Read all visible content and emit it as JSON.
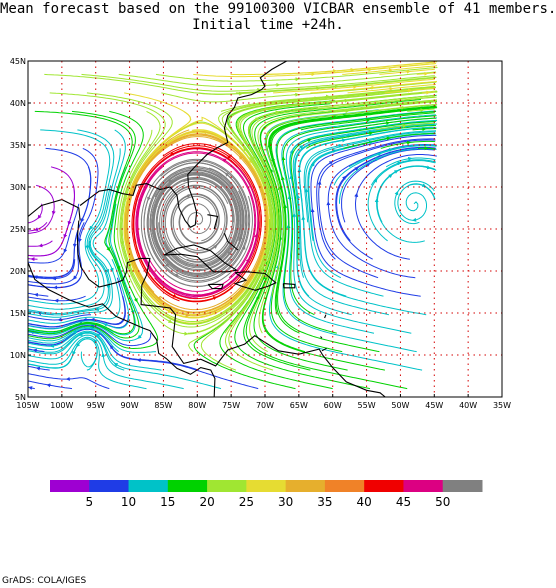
{
  "title_line1": "Mean forecast based on the 99100300 VICBAR ensemble of 41 members.",
  "title_line2": "Initial time +24h.",
  "footer": "GrADS: COLA/IGES",
  "map": {
    "lon_min": -105,
    "lon_max": -35,
    "lat_min": 5,
    "lat_max": 45,
    "data_lon_max": -45,
    "lat_ticks": [
      {
        "value": 45,
        "label": "45N"
      },
      {
        "value": 40,
        "label": "40N"
      },
      {
        "value": 35,
        "label": "35N"
      },
      {
        "value": 30,
        "label": "30N"
      },
      {
        "value": 25,
        "label": "25N"
      },
      {
        "value": 20,
        "label": "20N"
      },
      {
        "value": 15,
        "label": "15N"
      },
      {
        "value": 10,
        "label": "10N"
      },
      {
        "value": 5,
        "label": "5N"
      }
    ],
    "lon_ticks": [
      {
        "value": -105,
        "label": "105W"
      },
      {
        "value": -100,
        "label": "100W"
      },
      {
        "value": -95,
        "label": "95W"
      },
      {
        "value": -90,
        "label": "90W"
      },
      {
        "value": -85,
        "label": "85W"
      },
      {
        "value": -80,
        "label": "80W"
      },
      {
        "value": -75,
        "label": "75W"
      },
      {
        "value": -70,
        "label": "70W"
      },
      {
        "value": -65,
        "label": "65W"
      },
      {
        "value": -60,
        "label": "60W"
      },
      {
        "value": -55,
        "label": "55W"
      },
      {
        "value": -50,
        "label": "50W"
      },
      {
        "value": -45,
        "label": "45W"
      },
      {
        "value": -40,
        "label": "40W"
      },
      {
        "value": -35,
        "label": "35W"
      }
    ]
  },
  "colorbar": {
    "colors": [
      "#9e00d2",
      "#1f3ce6",
      "#00c2c8",
      "#00d200",
      "#a0e632",
      "#e6dc32",
      "#e6af2d",
      "#f08228",
      "#f00000",
      "#dc0082",
      "#808080"
    ],
    "labels": [
      "5",
      "10",
      "15",
      "20",
      "25",
      "30",
      "35",
      "40",
      "45",
      "50"
    ]
  }
}
